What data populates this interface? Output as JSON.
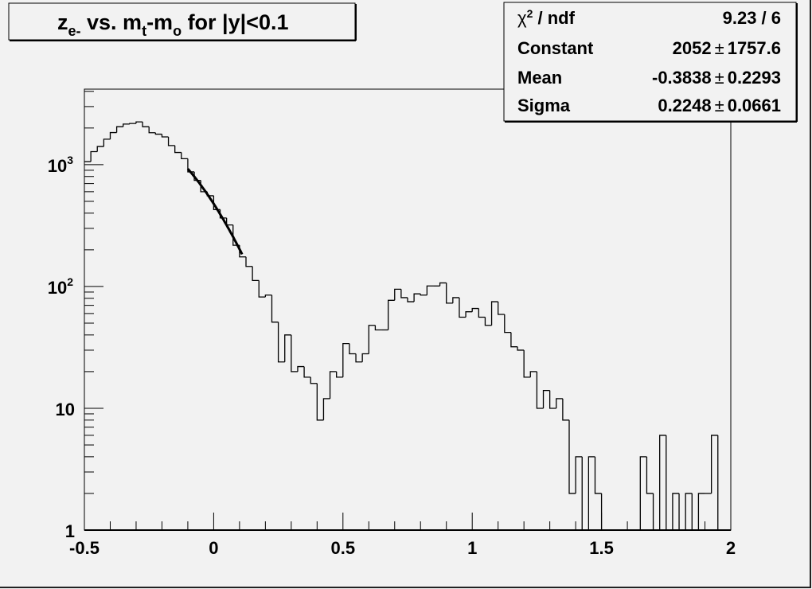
{
  "chart_data": {
    "type": "bar",
    "histogram_style": "step",
    "title": {
      "base": "z",
      "sub1": "e-",
      "mid": " vs. m",
      "sub2": "t",
      "mid2": "-m",
      "sub3": "o",
      "tail": " for |y|<0.1"
    },
    "xlabel": "",
    "ylabel": "",
    "xlim": [
      -0.5,
      2.0
    ],
    "ylim": [
      1,
      4170
    ],
    "y_scale": "log",
    "grid": false,
    "bin_width": 0.025,
    "x_ticks": [
      "-0.5",
      "0",
      "0.5",
      "1",
      "1.5",
      "2"
    ],
    "x_tick_values": [
      -0.5,
      0,
      0.5,
      1,
      1.5,
      2
    ],
    "y_ticks": [
      {
        "value": 1,
        "base": "1",
        "exp": ""
      },
      {
        "value": 10,
        "base": "10",
        "exp": ""
      },
      {
        "value": 100,
        "base": "10",
        "exp": "2"
      },
      {
        "value": 1000,
        "base": "10",
        "exp": "3"
      }
    ],
    "values": [
      1060,
      1280,
      1410,
      1620,
      1835,
      2050,
      2155,
      2180,
      2245,
      2050,
      1830,
      1780,
      1690,
      1435,
      1260,
      1120,
      873,
      743,
      600,
      556,
      428,
      365,
      320,
      218,
      175,
      146,
      112,
      82,
      85,
      51,
      24,
      40,
      20,
      22,
      18,
      16,
      8,
      12,
      20,
      18,
      34,
      28,
      24,
      28,
      48,
      44,
      44,
      77,
      95,
      81,
      75,
      87,
      85,
      101,
      101,
      107,
      73,
      81,
      56,
      62,
      66,
      56,
      48,
      75,
      59,
      42,
      32,
      30,
      18,
      20,
      10,
      14,
      10,
      12,
      8,
      2,
      4,
      0,
      4,
      2,
      0,
      0,
      0,
      0,
      0,
      0,
      4,
      2,
      0,
      6,
      0,
      2,
      0,
      2,
      0,
      2,
      2,
      6,
      0,
      0
    ],
    "fit": {
      "function": "gaus",
      "constant": 2052,
      "mean": -0.3838,
      "sigma": 0.2248,
      "range": [
        -0.1,
        0.11
      ]
    },
    "legend_placement": "top-right"
  },
  "stats": {
    "rows": [
      {
        "label": "ndf_label",
        "value": "9.23 / 6"
      },
      {
        "label": "Constant",
        "value": "2052",
        "error": "1757.6"
      },
      {
        "label": "Mean",
        "value": "-0.3838",
        "error": "0.2293"
      },
      {
        "label": "Sigma",
        "value": "0.2248",
        "error": "0.0661"
      }
    ],
    "chi_label": {
      "chi": "χ",
      "sup": "2",
      "rest": " / ndf"
    },
    "pm": "±"
  },
  "colors": {
    "background": "#f2f2f2",
    "line": "#000000"
  }
}
